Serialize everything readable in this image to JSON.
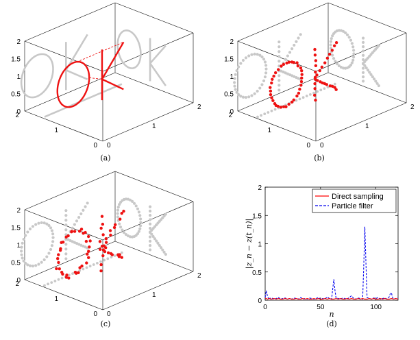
{
  "panels3d": [
    {
      "caption": "(a)",
      "style": "line",
      "z_ticks": [
        "2",
        "1.5",
        "1",
        "0.5",
        "0"
      ],
      "y_ticks": [
        "2",
        "1",
        "0"
      ],
      "x_ticks": [
        "0",
        "1",
        "2"
      ]
    },
    {
      "caption": "(b)",
      "style": "dots",
      "z_ticks": [
        "2",
        "1.5",
        "1",
        "0.5",
        "0"
      ],
      "y_ticks": [
        "2",
        "1",
        "0"
      ],
      "x_ticks": [
        "0",
        "1",
        "2"
      ]
    },
    {
      "caption": "(c)",
      "style": "scatter",
      "z_ticks": [
        "2",
        "1.5",
        "1",
        "0.5",
        "0"
      ],
      "y_ticks": [
        "2",
        "1",
        "0"
      ],
      "x_ticks": [
        "0",
        "1",
        "2"
      ]
    }
  ],
  "colors": {
    "trajectory": "#ee1111",
    "projection": "#c8c8c8",
    "direct": "#ff0000",
    "particle": "#0000ee"
  },
  "chart_data": {
    "type": "line",
    "caption": "(d)",
    "xlabel": "n",
    "ylabel": "|z_n − z(t_n)|",
    "xlim": [
      0,
      120
    ],
    "ylim": [
      0,
      2
    ],
    "x_ticks": [
      "0",
      "50",
      "100"
    ],
    "y_ticks": [
      "0",
      "0.5",
      "1",
      "1.5",
      "2"
    ],
    "legend_position": "top-right",
    "series": [
      {
        "name": "Direct sampling",
        "style": "solid",
        "x": [
          0,
          2,
          4,
          6,
          8,
          10,
          12,
          14,
          16,
          18,
          20,
          22,
          24,
          26,
          28,
          30,
          32,
          34,
          36,
          38,
          40,
          42,
          44,
          46,
          48,
          50,
          52,
          54,
          56,
          58,
          60,
          62,
          64,
          66,
          68,
          70,
          72,
          74,
          76,
          78,
          80,
          82,
          84,
          86,
          88,
          90,
          92,
          94,
          96,
          98,
          100,
          102,
          104,
          106,
          108,
          110,
          112,
          114,
          116,
          118,
          120
        ],
        "values": [
          0.04,
          0.02,
          0.03,
          0.02,
          0.03,
          0.02,
          0.03,
          0.02,
          0.02,
          0.03,
          0.02,
          0.03,
          0.02,
          0.02,
          0.03,
          0.02,
          0.02,
          0.03,
          0.02,
          0.03,
          0.02,
          0.02,
          0.03,
          0.02,
          0.03,
          0.02,
          0.02,
          0.03,
          0.02,
          0.03,
          0.02,
          0.02,
          0.03,
          0.02,
          0.03,
          0.02,
          0.02,
          0.03,
          0.02,
          0.03,
          0.02,
          0.02,
          0.03,
          0.02,
          0.03,
          0.02,
          0.02,
          0.03,
          0.02,
          0.03,
          0.02,
          0.02,
          0.03,
          0.02,
          0.03,
          0.02,
          0.02,
          0.03,
          0.02,
          0.03,
          0.02
        ]
      },
      {
        "name": "Particle filter",
        "style": "dashed",
        "x": [
          0,
          1,
          2,
          3,
          4,
          5,
          6,
          8,
          10,
          12,
          14,
          16,
          18,
          20,
          22,
          24,
          26,
          28,
          30,
          32,
          34,
          36,
          38,
          40,
          42,
          44,
          46,
          48,
          50,
          52,
          54,
          56,
          58,
          60,
          61,
          62,
          63,
          64,
          66,
          68,
          70,
          72,
          74,
          76,
          78,
          80,
          82,
          84,
          86,
          88,
          89,
          90,
          91,
          92,
          94,
          96,
          98,
          100,
          102,
          104,
          106,
          108,
          110,
          112,
          113,
          114,
          115,
          116,
          118,
          120
        ],
        "values": [
          0.05,
          0.17,
          0.08,
          0.03,
          0.05,
          0.02,
          0.04,
          0.02,
          0.03,
          0.05,
          0.02,
          0.03,
          0.04,
          0.02,
          0.03,
          0.02,
          0.04,
          0.03,
          0.02,
          0.05,
          0.02,
          0.03,
          0.02,
          0.04,
          0.03,
          0.02,
          0.03,
          0.05,
          0.02,
          0.03,
          0.02,
          0.06,
          0.03,
          0.02,
          0.2,
          0.37,
          0.18,
          0.04,
          0.03,
          0.02,
          0.04,
          0.03,
          0.02,
          0.05,
          0.08,
          0.03,
          0.02,
          0.04,
          0.03,
          0.02,
          0.6,
          1.3,
          0.65,
          0.05,
          0.03,
          0.02,
          0.04,
          0.03,
          0.05,
          0.02,
          0.03,
          0.04,
          0.02,
          0.06,
          0.12,
          0.13,
          0.05,
          0.02,
          0.03,
          0.04
        ]
      }
    ]
  }
}
